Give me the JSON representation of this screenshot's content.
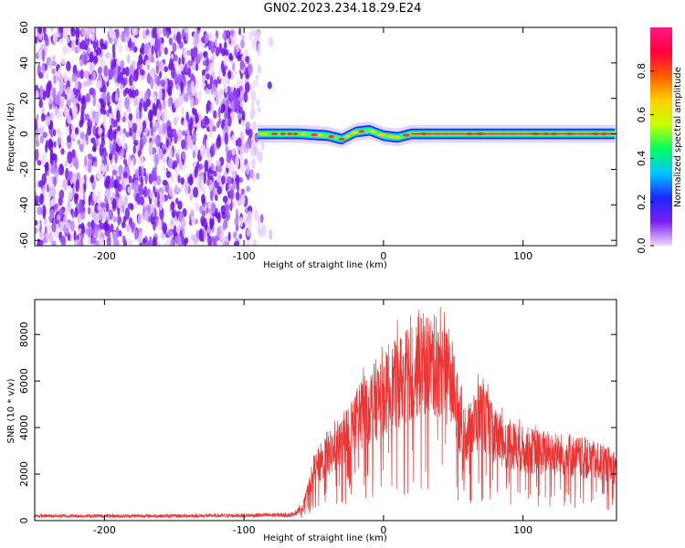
{
  "title": "GN02.2023.234.18.29.E24",
  "colors": {
    "noise": "#7a1cf0",
    "signal_line": "#ee3333",
    "axis": "#000000"
  },
  "chart_data": [
    {
      "type": "heatmap",
      "name": "spectrogram",
      "xlabel": "Height of straight line (km)",
      "ylabel": "Frequency (Hz)",
      "xlim": [
        -250,
        167
      ],
      "ylim": [
        -63,
        60
      ],
      "xticks": [
        -200,
        -100,
        0,
        100
      ],
      "yticks": [
        -60,
        -40,
        -20,
        0,
        20,
        40,
        60
      ],
      "grid": false,
      "noise_region_x": [
        -250,
        -80
      ],
      "signal_band": {
        "x_start": -90,
        "x_end": 167,
        "center_hz": [
          [
            -90,
            0
          ],
          [
            -60,
            0
          ],
          [
            -40,
            -1
          ],
          [
            -30,
            -3
          ],
          [
            -20,
            1
          ],
          [
            -10,
            2
          ],
          [
            0,
            -1
          ],
          [
            10,
            -2
          ],
          [
            20,
            0
          ],
          [
            167,
            0
          ]
        ],
        "halfwidth_hz": 3
      },
      "colorbar": {
        "label": "Normalized spectral amplitude",
        "ticks": [
          "0.0",
          "0.2",
          "0.4",
          "0.6",
          "0.8"
        ],
        "range": [
          0,
          1
        ],
        "colormap": [
          "#f0d8ff",
          "#7a1cf0",
          "#1a2aff",
          "#00c8ff",
          "#00ff60",
          "#c8ff00",
          "#ffd000",
          "#ff5a00",
          "#ff0040",
          "#ff1a80"
        ]
      }
    },
    {
      "type": "line",
      "name": "snr",
      "xlabel": "Height of straight line (km)",
      "ylabel": "SNR (10 * v/v)",
      "xlim": [
        -250,
        167
      ],
      "ylim": [
        0,
        9500
      ],
      "xticks": [
        -200,
        -100,
        0,
        100
      ],
      "yticks": [
        0,
        2000,
        4000,
        6000,
        8000
      ],
      "grid": false,
      "series": [
        {
          "values_envelope": [
            [
              -250,
              200
            ],
            [
              -200,
              200
            ],
            [
              -150,
              200
            ],
            [
              -100,
              220
            ],
            [
              -65,
              250
            ],
            [
              -58,
              600
            ],
            [
              -50,
              2500
            ],
            [
              -40,
              3400
            ],
            [
              -30,
              4000
            ],
            [
              -20,
              5200
            ],
            [
              -10,
              6000
            ],
            [
              0,
              6500
            ],
            [
              10,
              7200
            ],
            [
              20,
              7800
            ],
            [
              30,
              8200
            ],
            [
              40,
              8000
            ],
            [
              50,
              7000
            ],
            [
              55,
              5000
            ],
            [
              60,
              4500
            ],
            [
              70,
              5600
            ],
            [
              80,
              4300
            ],
            [
              100,
              3700
            ],
            [
              120,
              3500
            ],
            [
              140,
              3300
            ],
            [
              167,
              2800
            ]
          ]
        }
      ]
    }
  ]
}
